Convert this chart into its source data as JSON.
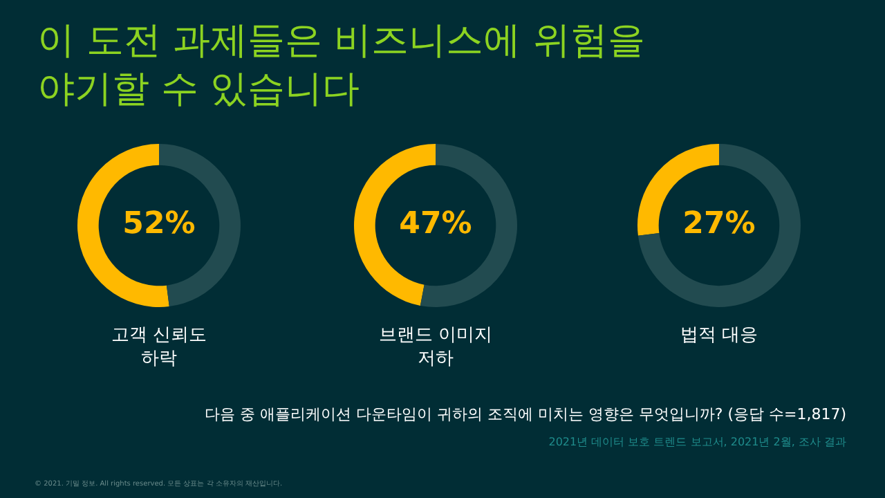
{
  "chart_data": [
    {
      "type": "donut",
      "title": "이 도전 과제들은 비즈니스에 위험을 야기할 수 있습니다",
      "categories": [
        null,
        null
      ],
      "xlabel": "고객 신뢰도 하락",
      "values": [
        52,
        48
      ],
      "colors": [
        "#ffb900",
        "#224b50"
      ],
      "value_labels": [
        "52%",
        null
      ],
      "legend": false
    },
    {
      "type": "donut",
      "categories": [
        null,
        null
      ],
      "xlabel": "브랜드 이미지 저하",
      "values": [
        47,
        53
      ],
      "colors": [
        "#ffb900",
        "#224b50"
      ],
      "value_labels": [
        "47%",
        null
      ],
      "legend": false
    },
    {
      "type": "donut",
      "categories": [
        null,
        null
      ],
      "xlabel": "법적 대응",
      "values": [
        27,
        73
      ],
      "colors": [
        "#ffb900",
        "#224b50"
      ],
      "value_labels": [
        "27%",
        null
      ],
      "legend": false,
      "annotations": [
        "다음 중 애플리케이션 다운타임이 귀하의 조직에 미치는 영향은 무엇입니까? (응답 수=1,817)",
        "2021년 데이터 보호 트렌드 보고서, 2021년 2월, 조사 결과",
        "© 2021. 기밀 정보. All rights reserved. 모든 상표는 각 소유자의 재산입니다."
      ]
    }
  ]
}
